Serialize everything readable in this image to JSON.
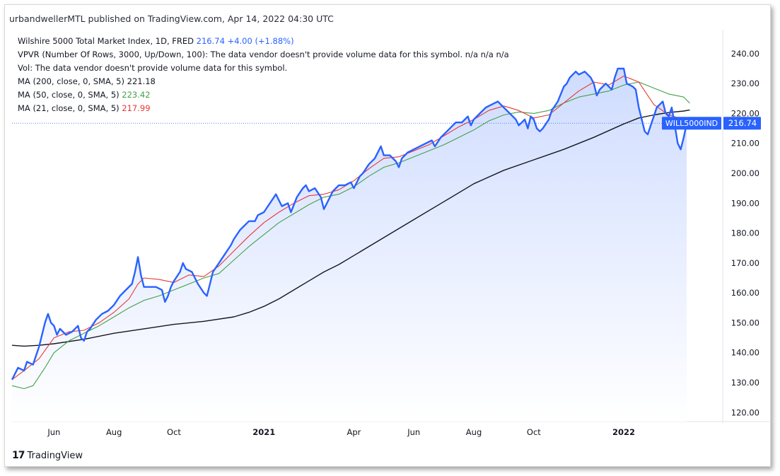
{
  "header": {
    "published": "urbandwellerMTL published on TradingView.com, Apr 14, 2022 04:30 UTC"
  },
  "legend": {
    "symbol_title": "Wilshire 5000 Total Market Index, 1D, FRED",
    "symbol_value": "216.74",
    "symbol_change": "+4.00 (+1.88%)",
    "vpvr": "VPVR (Number Of Rows, 3000, Up/Down, 100): The data vendor doesn't provide volume data for this symbol.  n/a  n/a  n/a",
    "vol": "Vol: The data vendor doesn't provide volume data for this symbol.",
    "ma200_label": "MA (200, close, 0, SMA, 5)",
    "ma200_value": "221.18",
    "ma50_label": "MA (50, close, 0, SMA, 5)",
    "ma50_value": "223.42",
    "ma21_label": "MA (21, close, 0, SMA, 5)",
    "ma21_value": "217.99"
  },
  "footer": {
    "brand": "TradingView",
    "logo_mark": "17"
  },
  "colors": {
    "price": "#2962ff",
    "ma200": "#131722",
    "ma50": "#43a047",
    "ma21": "#e53935",
    "area_top": "#cfdcff",
    "area_bottom": "#ffffff",
    "price_tag_bg": "#2962ff"
  },
  "chart_data": {
    "type": "line",
    "title": "Wilshire 5000 Total Market Index, 1D, FRED",
    "price_tag": {
      "symbol": "WILL5000IND",
      "value": 216.74
    },
    "ylim": [
      117,
      248
    ],
    "y_ticks": [
      "120.00",
      "130.00",
      "140.00",
      "150.00",
      "160.00",
      "170.00",
      "180.00",
      "190.00",
      "200.00",
      "210.00",
      "220.00",
      "230.00",
      "240.00"
    ],
    "x_ticks": [
      {
        "label": "Jun",
        "x": 1.0,
        "bold": false
      },
      {
        "label": "Aug",
        "x": 3.0,
        "bold": false
      },
      {
        "label": "Oct",
        "x": 5.0,
        "bold": false
      },
      {
        "label": "2021",
        "x": 8.0,
        "bold": true
      },
      {
        "label": "Apr",
        "x": 11.0,
        "bold": false
      },
      {
        "label": "Jun",
        "x": 13.0,
        "bold": false
      },
      {
        "label": "Aug",
        "x": 15.0,
        "bold": false
      },
      {
        "label": "Oct",
        "x": 17.0,
        "bold": false
      },
      {
        "label": "2022",
        "x": 20.0,
        "bold": true
      }
    ],
    "x_unit": "months since 2020-05-01",
    "xlim": [
      -0.4,
      23.3
    ],
    "series": [
      {
        "name": "Wilshire 5000 Total Market Index",
        "key": "price",
        "points": [
          [
            -0.4,
            131
          ],
          [
            -0.2,
            135
          ],
          [
            0,
            134
          ],
          [
            0.1,
            137
          ],
          [
            0.3,
            136
          ],
          [
            0.5,
            142
          ],
          [
            0.7,
            150
          ],
          [
            0.8,
            153
          ],
          [
            0.9,
            150
          ],
          [
            1.0,
            149
          ],
          [
            1.1,
            146
          ],
          [
            1.2,
            148
          ],
          [
            1.4,
            146
          ],
          [
            1.6,
            147
          ],
          [
            1.8,
            149
          ],
          [
            1.9,
            145
          ],
          [
            2.0,
            144
          ],
          [
            2.1,
            147
          ],
          [
            2.2,
            148
          ],
          [
            2.4,
            151
          ],
          [
            2.6,
            153
          ],
          [
            2.8,
            154
          ],
          [
            3.0,
            156
          ],
          [
            3.2,
            159
          ],
          [
            3.4,
            161
          ],
          [
            3.6,
            163
          ],
          [
            3.7,
            167
          ],
          [
            3.8,
            172
          ],
          [
            3.9,
            166
          ],
          [
            4.0,
            162
          ],
          [
            4.2,
            162
          ],
          [
            4.4,
            162
          ],
          [
            4.6,
            161
          ],
          [
            4.7,
            157
          ],
          [
            4.8,
            159
          ],
          [
            4.9,
            162
          ],
          [
            5.0,
            164
          ],
          [
            5.2,
            167
          ],
          [
            5.3,
            170
          ],
          [
            5.4,
            168
          ],
          [
            5.6,
            167
          ],
          [
            5.7,
            165
          ],
          [
            5.8,
            163
          ],
          [
            6.0,
            160
          ],
          [
            6.1,
            159
          ],
          [
            6.2,
            163
          ],
          [
            6.3,
            167
          ],
          [
            6.5,
            170
          ],
          [
            6.7,
            173
          ],
          [
            6.9,
            176
          ],
          [
            7.0,
            178
          ],
          [
            7.2,
            181
          ],
          [
            7.3,
            182
          ],
          [
            7.5,
            184
          ],
          [
            7.7,
            184
          ],
          [
            7.8,
            186
          ],
          [
            8.0,
            187
          ],
          [
            8.2,
            190
          ],
          [
            8.4,
            193
          ],
          [
            8.5,
            191
          ],
          [
            8.6,
            189
          ],
          [
            8.8,
            190
          ],
          [
            8.9,
            187
          ],
          [
            9.1,
            192
          ],
          [
            9.3,
            195
          ],
          [
            9.4,
            196
          ],
          [
            9.5,
            194
          ],
          [
            9.7,
            195
          ],
          [
            9.9,
            192
          ],
          [
            10.0,
            188
          ],
          [
            10.1,
            190
          ],
          [
            10.3,
            194
          ],
          [
            10.5,
            196
          ],
          [
            10.7,
            196
          ],
          [
            10.9,
            197
          ],
          [
            11.0,
            195
          ],
          [
            11.2,
            199
          ],
          [
            11.3,
            200
          ],
          [
            11.5,
            203
          ],
          [
            11.7,
            205
          ],
          [
            11.8,
            207
          ],
          [
            11.9,
            209
          ],
          [
            12.0,
            206
          ],
          [
            12.2,
            206
          ],
          [
            12.4,
            204
          ],
          [
            12.5,
            202
          ],
          [
            12.6,
            205
          ],
          [
            12.8,
            207
          ],
          [
            13.0,
            208
          ],
          [
            13.2,
            209
          ],
          [
            13.4,
            210
          ],
          [
            13.6,
            211
          ],
          [
            13.7,
            209
          ],
          [
            13.9,
            212
          ],
          [
            14.1,
            214
          ],
          [
            14.3,
            216
          ],
          [
            14.4,
            217
          ],
          [
            14.6,
            217
          ],
          [
            14.8,
            219
          ],
          [
            14.9,
            216
          ],
          [
            15.0,
            218
          ],
          [
            15.2,
            220
          ],
          [
            15.4,
            222
          ],
          [
            15.6,
            223
          ],
          [
            15.8,
            224
          ],
          [
            16.0,
            222
          ],
          [
            16.2,
            220
          ],
          [
            16.4,
            218
          ],
          [
            16.5,
            216
          ],
          [
            16.7,
            218
          ],
          [
            16.8,
            215
          ],
          [
            16.9,
            219
          ],
          [
            17.0,
            218
          ],
          [
            17.1,
            215
          ],
          [
            17.2,
            214
          ],
          [
            17.3,
            215
          ],
          [
            17.5,
            218
          ],
          [
            17.6,
            221
          ],
          [
            17.8,
            224
          ],
          [
            18.0,
            229
          ],
          [
            18.1,
            230
          ],
          [
            18.2,
            232
          ],
          [
            18.4,
            234
          ],
          [
            18.5,
            233
          ],
          [
            18.7,
            234
          ],
          [
            18.9,
            232
          ],
          [
            19.0,
            230
          ],
          [
            19.1,
            226
          ],
          [
            19.2,
            228
          ],
          [
            19.4,
            230
          ],
          [
            19.6,
            228
          ],
          [
            19.7,
            232
          ],
          [
            19.8,
            235
          ],
          [
            20.0,
            235
          ],
          [
            20.1,
            230
          ],
          [
            20.3,
            229
          ],
          [
            20.4,
            228
          ],
          [
            20.5,
            222
          ],
          [
            20.6,
            218
          ],
          [
            20.7,
            214
          ],
          [
            20.8,
            213
          ],
          [
            20.9,
            216
          ],
          [
            21.0,
            219
          ],
          [
            21.1,
            222
          ],
          [
            21.3,
            224
          ],
          [
            21.4,
            220
          ],
          [
            21.5,
            219
          ],
          [
            21.6,
            222
          ],
          [
            21.7,
            216
          ],
          [
            21.8,
            210
          ],
          [
            21.9,
            208
          ],
          [
            22.0,
            212
          ],
          [
            22.1,
            216.74
          ]
        ]
      },
      {
        "name": "MA (200, close, 0, SMA, 5)",
        "key": "ma200",
        "points": [
          [
            -0.4,
            142.5
          ],
          [
            0,
            142.2
          ],
          [
            0.5,
            142.5
          ],
          [
            1,
            143
          ],
          [
            2,
            144.5
          ],
          [
            3,
            146.5
          ],
          [
            4,
            148
          ],
          [
            5,
            149.5
          ],
          [
            6,
            150.5
          ],
          [
            7,
            152
          ],
          [
            7.5,
            153.5
          ],
          [
            8,
            155.5
          ],
          [
            8.5,
            158
          ],
          [
            9,
            161
          ],
          [
            9.5,
            164
          ],
          [
            10,
            167
          ],
          [
            10.5,
            169.5
          ],
          [
            11,
            172.5
          ],
          [
            12,
            178.5
          ],
          [
            13,
            184.5
          ],
          [
            14,
            190.5
          ],
          [
            15,
            196.5
          ],
          [
            16,
            201
          ],
          [
            17,
            204.5
          ],
          [
            18,
            208
          ],
          [
            19,
            212
          ],
          [
            20,
            216.5
          ],
          [
            20.5,
            218.5
          ],
          [
            21,
            219.5
          ],
          [
            21.5,
            220.3
          ],
          [
            22,
            220.8
          ],
          [
            22.2,
            221.18
          ]
        ]
      },
      {
        "name": "MA (50, close, 0, SMA, 5)",
        "key": "ma50",
        "points": [
          [
            -0.4,
            129
          ],
          [
            0,
            128
          ],
          [
            0.3,
            129
          ],
          [
            0.7,
            135
          ],
          [
            1,
            140
          ],
          [
            1.5,
            144
          ],
          [
            2,
            146.5
          ],
          [
            2.5,
            149
          ],
          [
            3,
            152
          ],
          [
            3.5,
            155
          ],
          [
            4,
            157.5
          ],
          [
            4.5,
            159
          ],
          [
            5,
            161
          ],
          [
            5.5,
            163
          ],
          [
            6,
            165
          ],
          [
            6.5,
            166.5
          ],
          [
            7,
            171
          ],
          [
            7.5,
            175.5
          ],
          [
            8,
            179.5
          ],
          [
            8.5,
            183.5
          ],
          [
            9,
            186.5
          ],
          [
            9.5,
            189.5
          ],
          [
            10,
            192
          ],
          [
            10.5,
            193
          ],
          [
            11,
            195.5
          ],
          [
            11.5,
            199
          ],
          [
            12,
            202
          ],
          [
            12.5,
            203.5
          ],
          [
            13,
            205.5
          ],
          [
            13.5,
            207.5
          ],
          [
            14,
            209.5
          ],
          [
            14.5,
            212
          ],
          [
            15,
            214.5
          ],
          [
            15.5,
            217.5
          ],
          [
            16,
            219.5
          ],
          [
            16.5,
            220.5
          ],
          [
            17,
            220
          ],
          [
            17.5,
            221
          ],
          [
            18,
            223.5
          ],
          [
            18.5,
            225.5
          ],
          [
            19,
            226.5
          ],
          [
            19.5,
            227.5
          ],
          [
            20,
            229.5
          ],
          [
            20.5,
            230.5
          ],
          [
            21,
            228.5
          ],
          [
            21.5,
            226.5
          ],
          [
            22,
            225.5
          ],
          [
            22.2,
            223.42
          ]
        ]
      },
      {
        "name": "MA (21, close, 0, SMA, 5)",
        "key": "ma21",
        "points": [
          [
            -0.4,
            131
          ],
          [
            0,
            134
          ],
          [
            0.5,
            138
          ],
          [
            1,
            145
          ],
          [
            1.5,
            147
          ],
          [
            2,
            147.5
          ],
          [
            2.5,
            150
          ],
          [
            3,
            153.5
          ],
          [
            3.5,
            158
          ],
          [
            3.8,
            163
          ],
          [
            4,
            165
          ],
          [
            4.5,
            164.5
          ],
          [
            5,
            163.5
          ],
          [
            5.5,
            166
          ],
          [
            6,
            165.5
          ],
          [
            6.5,
            169
          ],
          [
            7,
            174
          ],
          [
            7.5,
            179
          ],
          [
            8,
            183.5
          ],
          [
            8.5,
            187
          ],
          [
            9,
            190
          ],
          [
            9.5,
            192.5
          ],
          [
            10,
            193
          ],
          [
            10.5,
            194.5
          ],
          [
            11,
            197.5
          ],
          [
            11.5,
            201.5
          ],
          [
            12,
            205
          ],
          [
            12.5,
            205.5
          ],
          [
            13,
            207.5
          ],
          [
            13.5,
            209.5
          ],
          [
            14,
            212.5
          ],
          [
            14.5,
            215.5
          ],
          [
            15,
            218
          ],
          [
            15.5,
            221
          ],
          [
            16,
            222.5
          ],
          [
            16.5,
            221
          ],
          [
            17,
            218.5
          ],
          [
            17.5,
            219.5
          ],
          [
            18,
            223.5
          ],
          [
            18.5,
            227.5
          ],
          [
            19,
            230.5
          ],
          [
            19.5,
            229.5
          ],
          [
            20,
            232.5
          ],
          [
            20.5,
            230.5
          ],
          [
            21,
            223
          ],
          [
            21.5,
            219.5
          ],
          [
            22,
            218
          ],
          [
            22.2,
            217.99
          ]
        ]
      }
    ]
  }
}
